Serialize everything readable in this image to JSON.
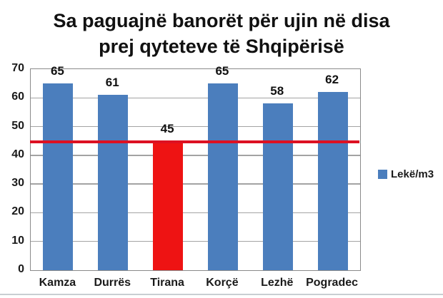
{
  "title": {
    "full": "Sa paguajnë banorët për ujin në disa prej qyteteve të Shqipërisë",
    "lines": [
      "Sa paguajnë banorët për ujin në disa",
      "prej qyteteve të Shqipërisë"
    ]
  },
  "legend": {
    "label": "Lekë/m3",
    "swatch_color": "#4b7ebd",
    "position": "right"
  },
  "colors": {
    "bar_blue": "#4b7ebd",
    "bar_red": "#ee1313",
    "reference_line": "#dd1122",
    "grid": "#a3a3a3",
    "plot_border": "#8a8a8a",
    "axis_text": "#1a1a1a"
  },
  "chart_data": {
    "type": "bar",
    "title": "Sa paguajnë banorët për ujin në disa prej qyteteve të Shqipërisë",
    "categories": [
      "Kamza",
      "Durrës",
      "Tirana",
      "Korçë",
      "Lezhë",
      "Pogradec"
    ],
    "values": [
      65,
      61,
      45,
      65,
      58,
      62
    ],
    "data_labels": [
      "65",
      "61",
      "45",
      "65",
      "58",
      "62"
    ],
    "bar_colors": [
      "#4b7ebd",
      "#4b7ebd",
      "#ee1313",
      "#4b7ebd",
      "#4b7ebd",
      "#4b7ebd"
    ],
    "highlight_category": "Tirana",
    "series_name": "Lekë/m3",
    "xlabel": "",
    "ylabel": "",
    "ylim": [
      0,
      70
    ],
    "yticks": [
      0,
      10,
      20,
      30,
      40,
      50,
      60,
      70
    ],
    "grid": true,
    "legend_position": "right",
    "reference_line": {
      "value": 44.5,
      "color": "#dd1122"
    }
  }
}
